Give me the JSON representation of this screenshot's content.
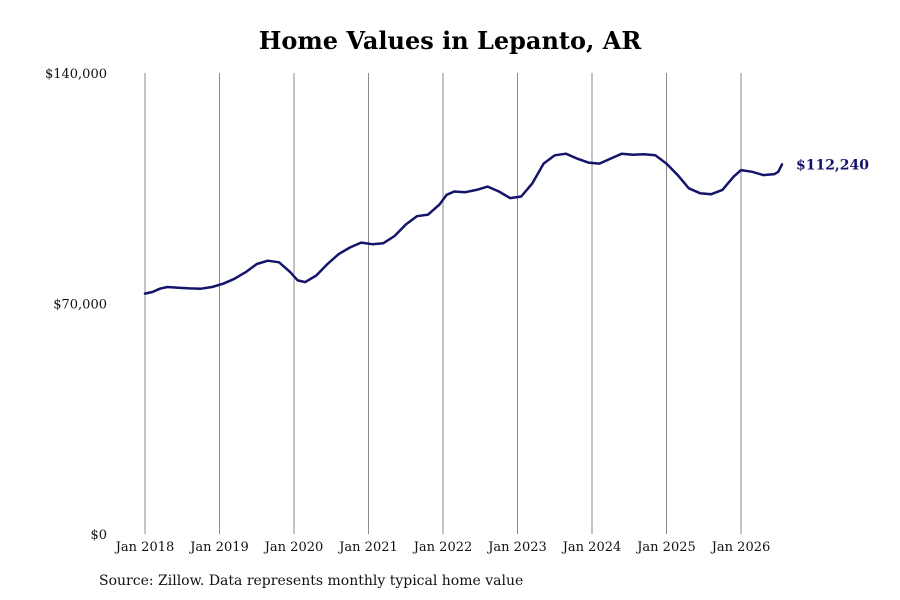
{
  "chart_data": {
    "type": "line",
    "title": "Home Values in Lepanto, AR",
    "xlabel": "",
    "ylabel": "",
    "ylim": [
      0,
      140000
    ],
    "y_ticks": [
      {
        "value": 0,
        "label": "$0"
      },
      {
        "value": 70000,
        "label": "$70,000"
      },
      {
        "value": 140000,
        "label": "$140,000"
      }
    ],
    "x_ticks": [
      {
        "value": 2018.0,
        "label": "Jan 2018"
      },
      {
        "value": 2019.0,
        "label": "Jan 2019"
      },
      {
        "value": 2020.0,
        "label": "Jan 2020"
      },
      {
        "value": 2021.0,
        "label": "Jan 2021"
      },
      {
        "value": 2022.0,
        "label": "Jan 2022"
      },
      {
        "value": 2023.0,
        "label": "Jan 2023"
      },
      {
        "value": 2024.0,
        "label": "Jan 2024"
      },
      {
        "value": 2025.0,
        "label": "Jan 2025"
      },
      {
        "value": 2026.0,
        "label": "Jan 2026"
      }
    ],
    "grid": "vertical",
    "line_color": "#14146b",
    "end_label": "$112,240",
    "series": [
      {
        "points": [
          [
            2018.0,
            73000
          ],
          [
            2018.1,
            73500
          ],
          [
            2018.2,
            74500
          ],
          [
            2018.3,
            75000
          ],
          [
            2018.45,
            74800
          ],
          [
            2018.6,
            74600
          ],
          [
            2018.75,
            74500
          ],
          [
            2018.9,
            75000
          ],
          [
            2019.05,
            76000
          ],
          [
            2019.2,
            77500
          ],
          [
            2019.35,
            79500
          ],
          [
            2019.5,
            82000
          ],
          [
            2019.65,
            83000
          ],
          [
            2019.8,
            82500
          ],
          [
            2019.95,
            79500
          ],
          [
            2020.05,
            77000
          ],
          [
            2020.15,
            76500
          ],
          [
            2020.3,
            78500
          ],
          [
            2020.45,
            82000
          ],
          [
            2020.6,
            85000
          ],
          [
            2020.75,
            87000
          ],
          [
            2020.9,
            88500
          ],
          [
            2021.05,
            88000
          ],
          [
            2021.2,
            88300
          ],
          [
            2021.35,
            90500
          ],
          [
            2021.5,
            94000
          ],
          [
            2021.65,
            96500
          ],
          [
            2021.8,
            97000
          ],
          [
            2021.95,
            100000
          ],
          [
            2022.05,
            103000
          ],
          [
            2022.15,
            104000
          ],
          [
            2022.3,
            103800
          ],
          [
            2022.45,
            104500
          ],
          [
            2022.6,
            105500
          ],
          [
            2022.75,
            104000
          ],
          [
            2022.9,
            102000
          ],
          [
            2023.05,
            102500
          ],
          [
            2023.2,
            106500
          ],
          [
            2023.35,
            112500
          ],
          [
            2023.5,
            115000
          ],
          [
            2023.65,
            115500
          ],
          [
            2023.8,
            114000
          ],
          [
            2023.95,
            112800
          ],
          [
            2024.1,
            112500
          ],
          [
            2024.25,
            114000
          ],
          [
            2024.4,
            115500
          ],
          [
            2024.55,
            115200
          ],
          [
            2024.7,
            115300
          ],
          [
            2024.85,
            115000
          ],
          [
            2025.0,
            112500
          ],
          [
            2025.15,
            109000
          ],
          [
            2025.3,
            105000
          ],
          [
            2025.45,
            103500
          ],
          [
            2025.6,
            103200
          ],
          [
            2025.75,
            104500
          ],
          [
            2025.9,
            108500
          ],
          [
            2026.0,
            110500
          ],
          [
            2026.15,
            110000
          ],
          [
            2026.3,
            109000
          ],
          [
            2026.45,
            109300
          ],
          [
            2026.5,
            110000
          ],
          [
            2026.55,
            112240
          ]
        ]
      }
    ]
  },
  "footer": {
    "source": "Source: Zillow. Data represents monthly typical home value"
  }
}
